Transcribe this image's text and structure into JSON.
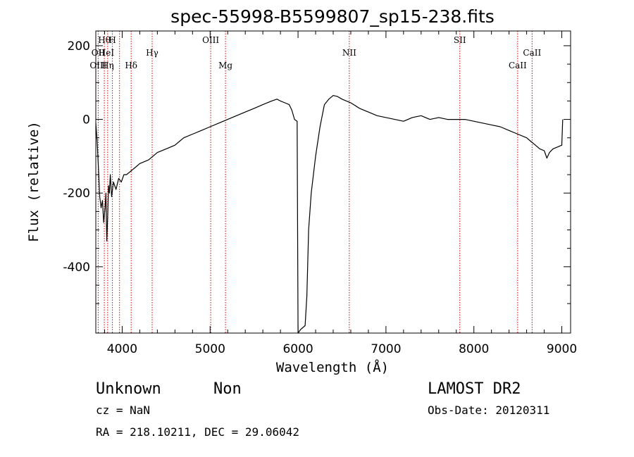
{
  "chart_data": {
    "type": "line",
    "title": "spec-55998-B5599807_sp15-238.fits",
    "xlabel": "Wavelength (Å)",
    "ylabel": "Flux (relative)",
    "xlim": [
      3700,
      9100
    ],
    "ylim": [
      -580,
      240
    ],
    "x_ticks": [
      4000,
      5000,
      6000,
      7000,
      8000,
      9000
    ],
    "y_ticks": [
      -400,
      -200,
      0,
      200
    ],
    "grid": false,
    "legend": "none",
    "series": [
      {
        "x": [
          3700,
          3715,
          3730,
          3745,
          3760,
          3775,
          3790,
          3805,
          3815,
          3825,
          3835,
          3845,
          3855,
          3865,
          3880,
          3900,
          3930,
          3960,
          3990,
          4020,
          4050,
          4100,
          4150,
          4200,
          4300,
          4400,
          4500,
          4600,
          4700,
          4800,
          4900,
          5000,
          5100,
          5200,
          5300,
          5400,
          5500,
          5600,
          5700,
          5760,
          5800,
          5850,
          5900,
          5930,
          5960,
          5990,
          6000,
          6030,
          6080,
          6100,
          6120,
          6150,
          6200,
          6250,
          6300,
          6350,
          6400,
          6450,
          6500,
          6550,
          6600,
          6700,
          6800,
          6900,
          7000,
          7100,
          7200,
          7300,
          7400,
          7500,
          7600,
          7700,
          7800,
          7900,
          8000,
          8100,
          8200,
          8300,
          8400,
          8500,
          8600,
          8650,
          8700,
          8750,
          8800,
          8830,
          8860,
          8900,
          8950,
          9000,
          9010
        ],
        "y": [
          -10,
          -60,
          -130,
          -210,
          -240,
          -220,
          -280,
          -240,
          -200,
          -330,
          -270,
          -180,
          -200,
          -150,
          -210,
          -170,
          -190,
          -160,
          -170,
          -150,
          -150,
          -140,
          -130,
          -120,
          -110,
          -90,
          -80,
          -70,
          -50,
          -40,
          -30,
          -20,
          -10,
          0,
          10,
          20,
          30,
          40,
          50,
          55,
          50,
          45,
          40,
          25,
          0,
          -5,
          -580,
          -570,
          -560,
          -480,
          -300,
          -200,
          -100,
          -20,
          40,
          55,
          65,
          62,
          55,
          50,
          45,
          30,
          20,
          10,
          5,
          0,
          -5,
          5,
          10,
          0,
          5,
          0,
          0,
          0,
          -5,
          -10,
          -15,
          -20,
          -30,
          -40,
          -50,
          -60,
          -70,
          -80,
          -85,
          -105,
          -90,
          -80,
          -75,
          -70,
          0
        ]
      }
    ],
    "line_markers": [
      {
        "label": "Hθ",
        "x": 3797,
        "row": 0
      },
      {
        "label": "H",
        "x": 3889,
        "row": 0
      },
      {
        "label": "OII",
        "x": 3727,
        "row": 1
      },
      {
        "label": "HeI",
        "x": 3820,
        "row": 1
      },
      {
        "label": "Hγ",
        "x": 4341,
        "row": 1
      },
      {
        "label": "OIII",
        "x": 5007,
        "row": 0
      },
      {
        "label": "NII",
        "x": 6583,
        "row": 1
      },
      {
        "label": "SII",
        "x": 7840,
        "row": 0
      },
      {
        "label": "CaII",
        "x": 8662,
        "row": 1
      },
      {
        "label": "OIII",
        "x": 3727,
        "row": 2
      },
      {
        "label": "Hη",
        "x": 3835,
        "row": 2
      },
      {
        "label": "Hδ",
        "x": 4102,
        "row": 2
      },
      {
        "label": "Mg",
        "x": 5175,
        "row": 2
      },
      {
        "label": "CaII",
        "x": 8498,
        "row": 2
      }
    ],
    "marker_lines_x": [
      3727,
      3797,
      3835,
      3889,
      3970,
      4102,
      4341,
      5007,
      5175,
      6583,
      7840,
      8498,
      8662
    ],
    "colors": {
      "spectrum": "#000000",
      "markers": "#d40000"
    }
  },
  "footer": {
    "object_class": "Unknown",
    "subclass": "Non",
    "survey": "LAMOST DR2",
    "cz": "cz = NaN",
    "obs_date": "Obs-Date: 20120311",
    "coords": "RA = 218.10211, DEC =  29.06042"
  }
}
